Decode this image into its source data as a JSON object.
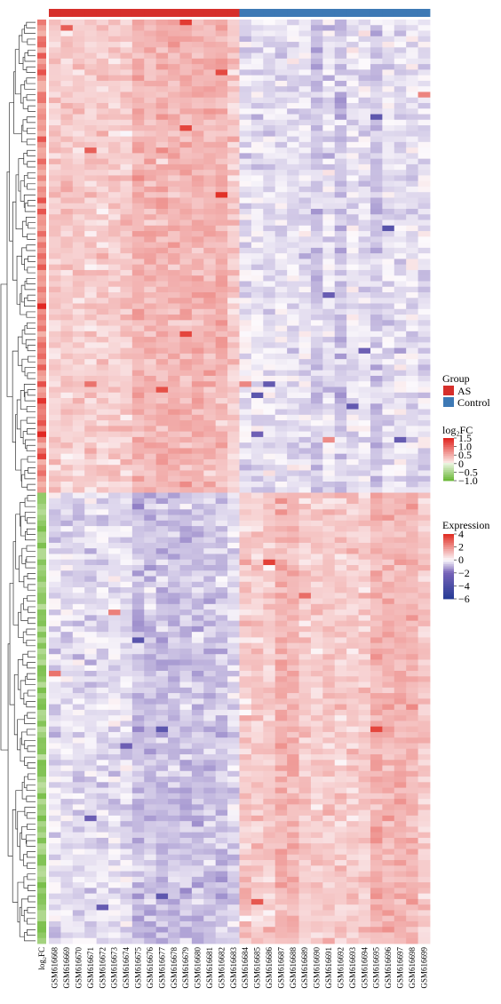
{
  "chart_data": {
    "type": "heatmap",
    "rows": 166,
    "up_rows": 85,
    "columns": [
      "GSM616668",
      "GSM616669",
      "GSM616670",
      "GSM616671",
      "GSM616672",
      "GSM616673",
      "GSM616674",
      "GSM616675",
      "GSM616676",
      "GSM616677",
      "GSM616678",
      "GSM616679",
      "GSM616680",
      "GSM616681",
      "GSM616682",
      "GSM616683",
      "GSM616684",
      "GSM616685",
      "GSM616686",
      "GSM616687",
      "GSM616688",
      "GSM616689",
      "GSM616690",
      "GSM616691",
      "GSM616692",
      "GSM616693",
      "GSM616694",
      "GSM616695",
      "GSM616696",
      "GSM616697",
      "GSM616698",
      "GSM616699"
    ],
    "column_groups": [
      "AS",
      "AS",
      "AS",
      "AS",
      "AS",
      "AS",
      "AS",
      "AS",
      "AS",
      "AS",
      "AS",
      "AS",
      "AS",
      "AS",
      "AS",
      "AS",
      "Control",
      "Control",
      "Control",
      "Control",
      "Control",
      "Control",
      "Control",
      "Control",
      "Control",
      "Control",
      "Control",
      "Control",
      "Control",
      "Control",
      "Control",
      "Control"
    ],
    "logfc_label": "log₂FC",
    "legend": {
      "group": {
        "title": "Group",
        "items": [
          {
            "label": "AS",
            "color": "#d62f2b"
          },
          {
            "label": "Control",
            "color": "#3d79b5"
          }
        ]
      },
      "logfc": {
        "title": "log₂FC",
        "ticks": [
          "1.5",
          "1.0",
          "0.5",
          "0",
          "−0.5",
          "−1.0"
        ],
        "range": [
          -1.0,
          1.5
        ]
      },
      "expression": {
        "title": "Expression",
        "ticks": [
          "4",
          "2",
          "0",
          "−2",
          "−4",
          "−6"
        ],
        "range": [
          -6,
          4
        ]
      }
    }
  }
}
